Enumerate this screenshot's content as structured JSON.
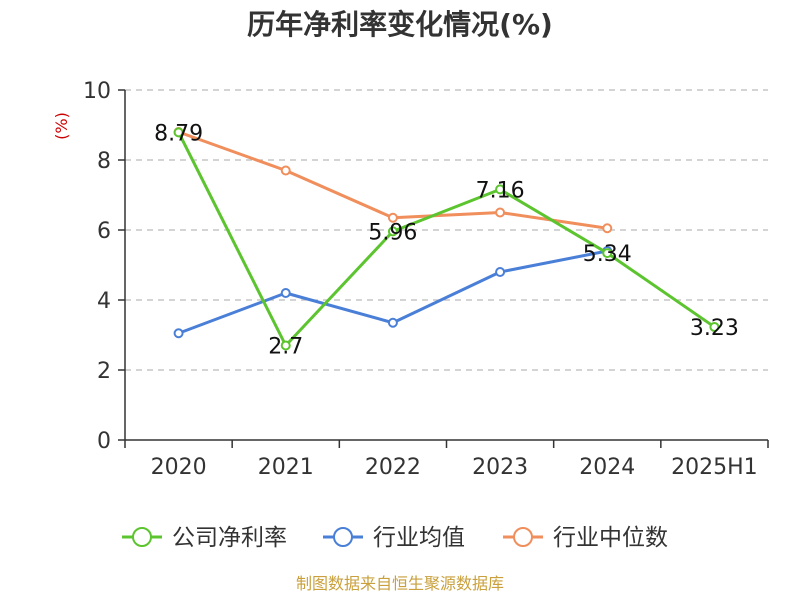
{
  "chart_data": {
    "type": "line",
    "title": "历年净利率变化情况(%)",
    "ylabel": "(%)",
    "xlabel": "",
    "categories": [
      "2020",
      "2021",
      "2022",
      "2023",
      "2024",
      "2025H1"
    ],
    "ylim": [
      0,
      10
    ],
    "yticks": [
      0,
      2,
      4,
      6,
      8,
      10
    ],
    "grid": true,
    "legend_position": "bottom",
    "series": [
      {
        "name": "公司净利率",
        "color": "#5cc42e",
        "values": [
          8.79,
          2.7,
          5.96,
          7.16,
          5.34,
          3.23
        ],
        "labels": [
          "8.79",
          "2.7",
          "5.96",
          "7.16",
          "5.34",
          "3.23"
        ]
      },
      {
        "name": "行业均值",
        "color": "#4a7fd8",
        "values": [
          3.05,
          4.2,
          3.35,
          4.8,
          5.4,
          null
        ]
      },
      {
        "name": "行业中位数",
        "color": "#f08e5c",
        "values": [
          8.8,
          7.7,
          6.35,
          6.5,
          6.05,
          null
        ]
      }
    ]
  },
  "source_note": "制图数据来自恒生聚源数据库",
  "colors": {
    "unit_label": "#cc0000",
    "source_note": "#c9a03c"
  }
}
